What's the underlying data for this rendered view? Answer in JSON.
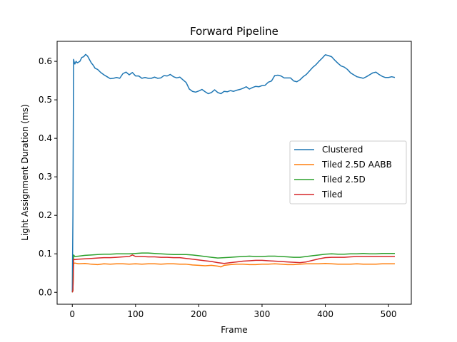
{
  "chart_data": {
    "type": "line",
    "title": "Forward Pipeline",
    "xlabel": "Frame",
    "ylabel": "Light Assignment Duration (ms)",
    "xlim": [
      -24,
      536
    ],
    "ylim": [
      -0.031,
      0.652
    ],
    "xticks": [
      0,
      100,
      200,
      300,
      400,
      500
    ],
    "yticks": [
      0.0,
      0.1,
      0.2,
      0.3,
      0.4,
      0.5,
      0.6
    ],
    "ytick_labels": [
      "0.0",
      "0.1",
      "0.2",
      "0.3",
      "0.4",
      "0.5",
      "0.6"
    ],
    "grid": false,
    "legend_position": "center-right",
    "series": [
      {
        "name": "Clustered",
        "color": "#1f77b4",
        "x": [
          0,
          1,
          2,
          3,
          4,
          6,
          8,
          10,
          12,
          15,
          18,
          21,
          24,
          27,
          30,
          33,
          36,
          40,
          45,
          50,
          55,
          60,
          65,
          70,
          75,
          80,
          85,
          90,
          95,
          100,
          105,
          110,
          115,
          120,
          125,
          130,
          135,
          140,
          145,
          150,
          155,
          160,
          165,
          170,
          175,
          180,
          185,
          190,
          195,
          200,
          205,
          210,
          215,
          220,
          225,
          230,
          235,
          240,
          245,
          250,
          255,
          260,
          265,
          270,
          275,
          280,
          285,
          290,
          295,
          300,
          305,
          310,
          315,
          320,
          325,
          330,
          335,
          340,
          345,
          350,
          355,
          360,
          365,
          370,
          375,
          380,
          385,
          390,
          395,
          400,
          405,
          410,
          415,
          420,
          425,
          430,
          435,
          440,
          445,
          450,
          455,
          460,
          465,
          470,
          475,
          480,
          485,
          490,
          495,
          500,
          505,
          510
        ],
        "y": [
          0.0,
          0.2,
          0.605,
          0.598,
          0.593,
          0.6,
          0.596,
          0.598,
          0.6,
          0.61,
          0.612,
          0.618,
          0.614,
          0.605,
          0.596,
          0.59,
          0.582,
          0.579,
          0.571,
          0.565,
          0.56,
          0.555,
          0.556,
          0.558,
          0.556,
          0.568,
          0.572,
          0.565,
          0.571,
          0.562,
          0.562,
          0.556,
          0.558,
          0.556,
          0.556,
          0.559,
          0.556,
          0.557,
          0.563,
          0.562,
          0.566,
          0.56,
          0.557,
          0.559,
          0.552,
          0.545,
          0.528,
          0.522,
          0.52,
          0.523,
          0.527,
          0.521,
          0.516,
          0.519,
          0.526,
          0.519,
          0.516,
          0.522,
          0.521,
          0.524,
          0.522,
          0.525,
          0.527,
          0.53,
          0.534,
          0.528,
          0.532,
          0.535,
          0.534,
          0.537,
          0.538,
          0.546,
          0.549,
          0.563,
          0.564,
          0.562,
          0.557,
          0.557,
          0.557,
          0.549,
          0.547,
          0.552,
          0.56,
          0.566,
          0.575,
          0.584,
          0.591,
          0.6,
          0.608,
          0.617,
          0.615,
          0.612,
          0.603,
          0.595,
          0.588,
          0.585,
          0.579,
          0.57,
          0.565,
          0.56,
          0.558,
          0.556,
          0.56,
          0.565,
          0.57,
          0.572,
          0.566,
          0.561,
          0.558,
          0.558,
          0.56,
          0.558
        ]
      },
      {
        "name": "Tiled 2.5D AABB",
        "color": "#ff7f0e",
        "x": [
          0,
          1,
          2,
          4,
          10,
          20,
          30,
          40,
          50,
          60,
          70,
          80,
          90,
          100,
          110,
          120,
          130,
          140,
          150,
          160,
          170,
          180,
          190,
          200,
          210,
          220,
          230,
          235,
          240,
          250,
          260,
          270,
          280,
          290,
          300,
          310,
          320,
          330,
          340,
          350,
          360,
          370,
          380,
          390,
          400,
          410,
          420,
          430,
          440,
          450,
          460,
          470,
          480,
          490,
          500,
          510
        ],
        "y": [
          0.0,
          0.005,
          0.075,
          0.076,
          0.074,
          0.075,
          0.073,
          0.072,
          0.074,
          0.073,
          0.074,
          0.074,
          0.073,
          0.074,
          0.073,
          0.074,
          0.074,
          0.073,
          0.074,
          0.074,
          0.073,
          0.073,
          0.071,
          0.07,
          0.069,
          0.07,
          0.068,
          0.066,
          0.07,
          0.072,
          0.073,
          0.073,
          0.072,
          0.072,
          0.073,
          0.073,
          0.074,
          0.073,
          0.072,
          0.072,
          0.073,
          0.074,
          0.074,
          0.074,
          0.075,
          0.074,
          0.073,
          0.073,
          0.073,
          0.074,
          0.073,
          0.073,
          0.073,
          0.074,
          0.074,
          0.074
        ]
      },
      {
        "name": "Tiled 2.5D",
        "color": "#2ca02c",
        "x": [
          0,
          1,
          2,
          4,
          10,
          20,
          30,
          40,
          50,
          60,
          70,
          80,
          90,
          100,
          110,
          120,
          130,
          140,
          150,
          160,
          170,
          180,
          190,
          200,
          210,
          220,
          230,
          240,
          250,
          260,
          270,
          280,
          290,
          300,
          310,
          320,
          330,
          340,
          350,
          360,
          370,
          380,
          390,
          400,
          410,
          420,
          430,
          440,
          450,
          460,
          470,
          480,
          490,
          500,
          510
        ],
        "y": [
          0.0,
          0.005,
          0.097,
          0.093,
          0.094,
          0.096,
          0.097,
          0.098,
          0.099,
          0.099,
          0.1,
          0.1,
          0.1,
          0.101,
          0.102,
          0.102,
          0.101,
          0.1,
          0.099,
          0.098,
          0.098,
          0.098,
          0.097,
          0.095,
          0.093,
          0.091,
          0.089,
          0.09,
          0.091,
          0.092,
          0.093,
          0.094,
          0.093,
          0.093,
          0.094,
          0.094,
          0.093,
          0.092,
          0.091,
          0.091,
          0.093,
          0.095,
          0.097,
          0.099,
          0.1,
          0.099,
          0.099,
          0.1,
          0.1,
          0.101,
          0.1,
          0.1,
          0.101,
          0.101,
          0.101
        ]
      },
      {
        "name": "Tiled",
        "color": "#d62728",
        "x": [
          0,
          1,
          2,
          4,
          10,
          20,
          30,
          40,
          50,
          60,
          70,
          80,
          90,
          95,
          100,
          110,
          120,
          130,
          140,
          150,
          160,
          170,
          180,
          190,
          200,
          210,
          220,
          230,
          240,
          250,
          260,
          270,
          280,
          290,
          300,
          310,
          320,
          330,
          340,
          350,
          360,
          370,
          380,
          390,
          400,
          410,
          420,
          430,
          440,
          450,
          460,
          470,
          480,
          490,
          500,
          510
        ],
        "y": [
          0.0,
          0.005,
          0.086,
          0.085,
          0.086,
          0.087,
          0.088,
          0.089,
          0.09,
          0.09,
          0.091,
          0.092,
          0.093,
          0.097,
          0.093,
          0.093,
          0.092,
          0.092,
          0.091,
          0.091,
          0.09,
          0.09,
          0.088,
          0.086,
          0.084,
          0.082,
          0.08,
          0.077,
          0.075,
          0.077,
          0.079,
          0.081,
          0.082,
          0.083,
          0.083,
          0.082,
          0.081,
          0.08,
          0.079,
          0.078,
          0.077,
          0.079,
          0.083,
          0.087,
          0.09,
          0.091,
          0.091,
          0.091,
          0.092,
          0.093,
          0.093,
          0.093,
          0.093,
          0.093,
          0.093,
          0.093
        ]
      }
    ]
  }
}
